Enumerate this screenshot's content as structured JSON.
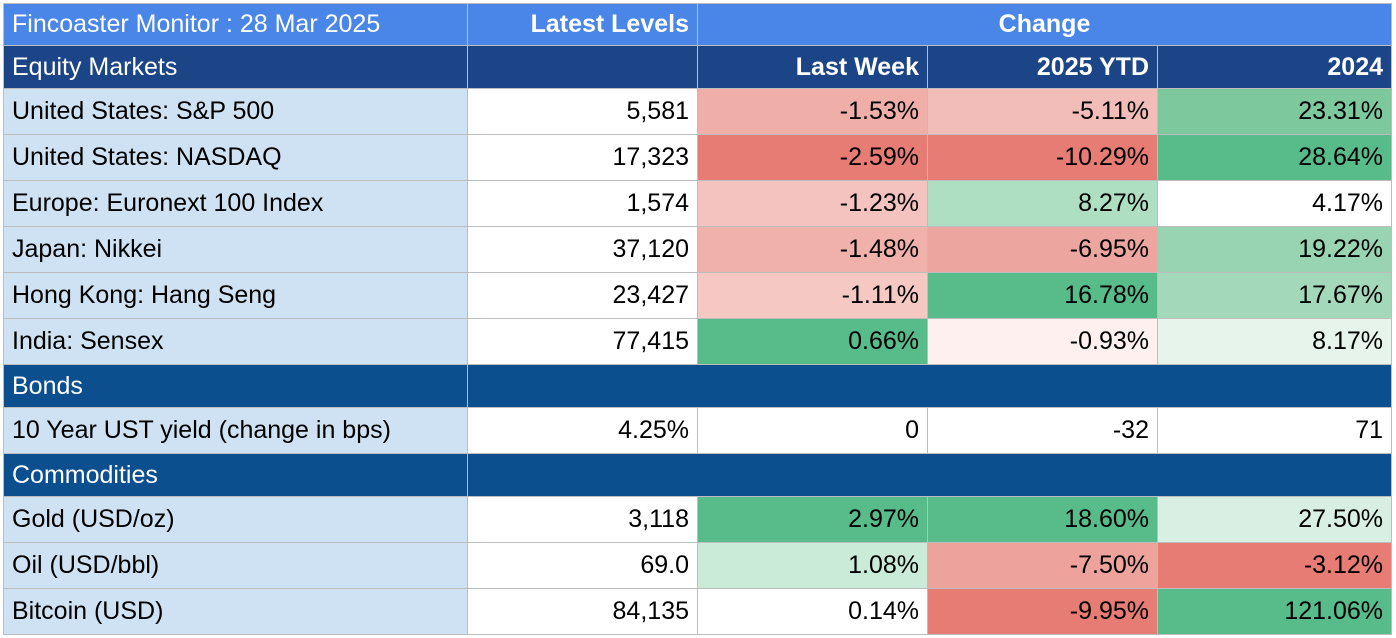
{
  "header": {
    "title": "Fincoaster Monitor : 28 Mar 2025",
    "latest_levels": "Latest Levels",
    "change": "Change"
  },
  "columns": {
    "last_week": "Last Week",
    "ytd": "2025 YTD",
    "prev_year": "2024"
  },
  "sections": {
    "equity": "Equity Markets",
    "bonds": "Bonds",
    "commodities": "Commodities"
  },
  "rows": [
    {
      "label": "United States: S&P 500",
      "level": "5,581",
      "last_week": "-1.53%",
      "ytd": "-5.11%",
      "prev_year": "23.31%",
      "colors": [
        "#efaea8",
        "#f2bcb8",
        "#7ec89d"
      ]
    },
    {
      "label": "United States: NASDAQ",
      "level": "17,323",
      "last_week": "-2.59%",
      "ytd": "-10.29%",
      "prev_year": "28.64%",
      "colors": [
        "#e67c73",
        "#e67c73",
        "#57bb8a"
      ]
    },
    {
      "label": "Europe: Euronext 100 Index",
      "level": "1,574",
      "last_week": "-1.23%",
      "ytd": "8.27%",
      "prev_year": "4.17%",
      "colors": [
        "#f4c2bf",
        "#aedfc3",
        "#ffffff"
      ]
    },
    {
      "label": "Japan: Nikkei",
      "level": "37,120",
      "last_week": "-1.48%",
      "ytd": "-6.95%",
      "prev_year": "19.22%",
      "colors": [
        "#f0b1ab",
        "#eda69f",
        "#98d4b2"
      ]
    },
    {
      "label": "Hong Kong: Hang Seng",
      "level": "23,427",
      "last_week": "-1.11%",
      "ytd": "16.78%",
      "prev_year": "17.67%",
      "colors": [
        "#f6c8c4",
        "#57bb8a",
        "#a3d9ba"
      ]
    },
    {
      "label": "India: Sensex",
      "level": "77,415",
      "last_week": "0.66%",
      "ytd": "-0.93%",
      "prev_year": "8.17%",
      "colors": [
        "#57bb8a",
        "#fdf0ef",
        "#e6f4ec"
      ]
    },
    {
      "section": "bonds"
    },
    {
      "label": "10 Year UST yield (change in bps)",
      "level": "4.25%",
      "last_week": "0",
      "ytd": "-32",
      "prev_year": "71",
      "colors": [
        "#ffffff",
        "#ffffff",
        "#ffffff"
      ]
    },
    {
      "section": "commodities"
    },
    {
      "label": "Gold (USD/oz)",
      "level": "3,118",
      "last_week": "2.97%",
      "ytd": "18.60%",
      "prev_year": "27.50%",
      "colors": [
        "#57bb8a",
        "#57bb8a",
        "#d9efe3"
      ]
    },
    {
      "label": "Oil (USD/bbl)",
      "level": "69.0",
      "last_week": "1.08%",
      "ytd": "-7.50%",
      "prev_year": "-3.12%",
      "colors": [
        "#cbebd9",
        "#eda39c",
        "#e67c73"
      ]
    },
    {
      "label": "Bitcoin (USD)",
      "level": "84,135",
      "last_week": "0.14%",
      "ytd": "-9.95%",
      "prev_year": "121.06%",
      "colors": [
        "#ffffff",
        "#e67c73",
        "#57bb8a"
      ]
    }
  ]
}
